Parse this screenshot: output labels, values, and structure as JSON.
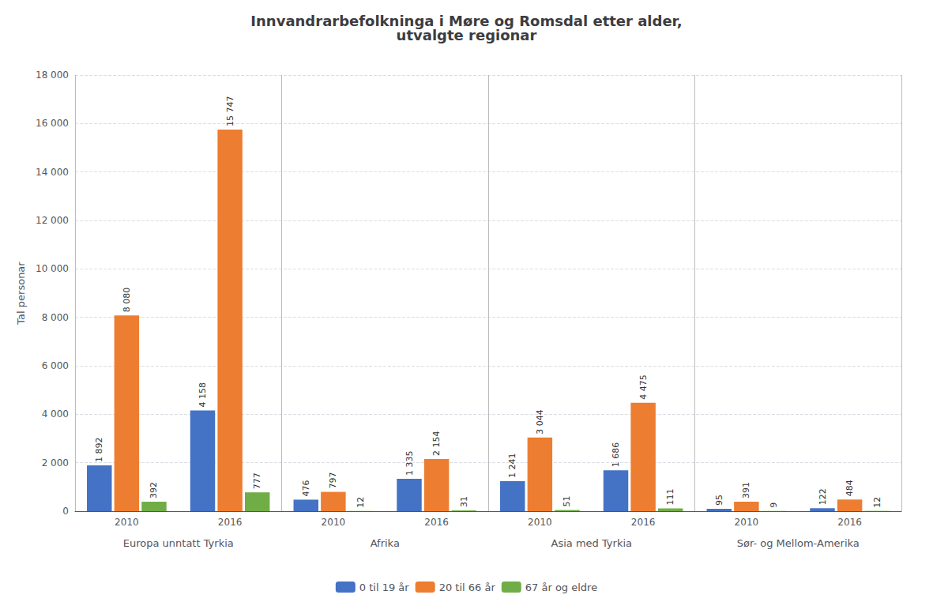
{
  "chart_data": {
    "type": "bar",
    "title": "Innvandrarbefolkninga i Møre og Romsdal etter alder,\nutvalgte regionar",
    "ylabel": "Tal personar",
    "categories": [
      "2010",
      "2016",
      "2010",
      "2016",
      "2010",
      "2016",
      "2010",
      "2016"
    ],
    "groups": [
      "Europa unntatt Tyrkia",
      "Afrika",
      "Asia med Tyrkia",
      "Sør- og Mellom-Amerika"
    ],
    "series": [
      {
        "name": "0 til 19 år",
        "color": "#4472C4",
        "values": [
          1892,
          4158,
          476,
          1335,
          1241,
          1686,
          95,
          122
        ],
        "value_labels": [
          "1 892",
          "4 158",
          "476",
          "1 335",
          "1 241",
          "1 686",
          "95",
          "122"
        ]
      },
      {
        "name": "20 til 66 år",
        "color": "#ED7D31",
        "values": [
          8080,
          15747,
          797,
          2154,
          3044,
          4475,
          391,
          484
        ],
        "value_labels": [
          "8 080",
          "15 747",
          "797",
          "2 154",
          "3 044",
          "4 475",
          "391",
          "484"
        ]
      },
      {
        "name": "67 år og eldre",
        "color": "#70AD47",
        "values": [
          392,
          777,
          12,
          31,
          51,
          111,
          9,
          12
        ],
        "value_labels": [
          "392",
          "777",
          "12",
          "31",
          "51",
          "111",
          "9",
          "12"
        ]
      }
    ],
    "ylim": [
      0,
      18000
    ],
    "yticks": [
      0,
      {
        "value": 2000,
        "label": "2 000"
      },
      {
        "value": 4000,
        "label": "4 000"
      },
      {
        "value": 6000,
        "label": "6 000"
      },
      {
        "value": 8000,
        "label": "8 000"
      },
      {
        "value": 10000,
        "label": "10 000"
      },
      {
        "value": 12000,
        "label": "12 000"
      },
      {
        "value": 14000,
        "label": "14 000"
      },
      {
        "value": 16000,
        "label": "16 000"
      },
      {
        "value": 18000,
        "label": "18 000"
      }
    ],
    "grid": true,
    "legend": "bottom",
    "data_labels": true
  }
}
